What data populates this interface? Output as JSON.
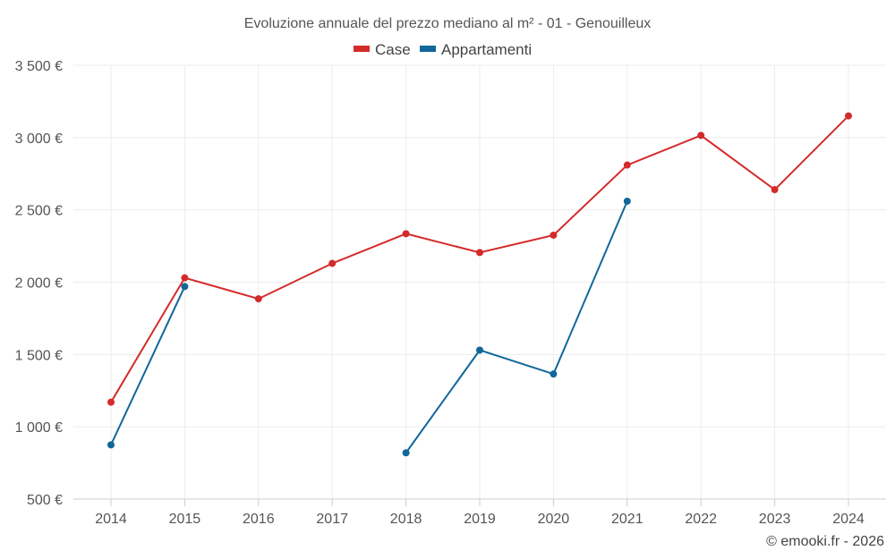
{
  "chart_data": {
    "type": "line",
    "title": "Evoluzione annuale del prezzo mediano al m² - 01 - Genouilleux",
    "categories": [
      "2014",
      "2015",
      "2016",
      "2017",
      "2018",
      "2019",
      "2020",
      "2021",
      "2022",
      "2023",
      "2024"
    ],
    "yticks": [
      "500 €",
      "1 000 €",
      "1 500 €",
      "2 000 €",
      "2 500 €",
      "3 000 €",
      "3 500 €"
    ],
    "ylim": [
      500,
      3500
    ],
    "series": [
      {
        "name": "Case",
        "color": "#d42a2a",
        "values": [
          1170,
          2030,
          1885,
          2130,
          2335,
          2205,
          2325,
          2810,
          3015,
          2640,
          3150
        ]
      },
      {
        "name": "Appartamenti",
        "color": "#10679a",
        "values": [
          875,
          1970,
          null,
          null,
          820,
          1530,
          1365,
          2560,
          null,
          null,
          null
        ]
      }
    ],
    "grid": true,
    "legend_position": "top-center",
    "credit": "© emooki.fr - 2026"
  }
}
